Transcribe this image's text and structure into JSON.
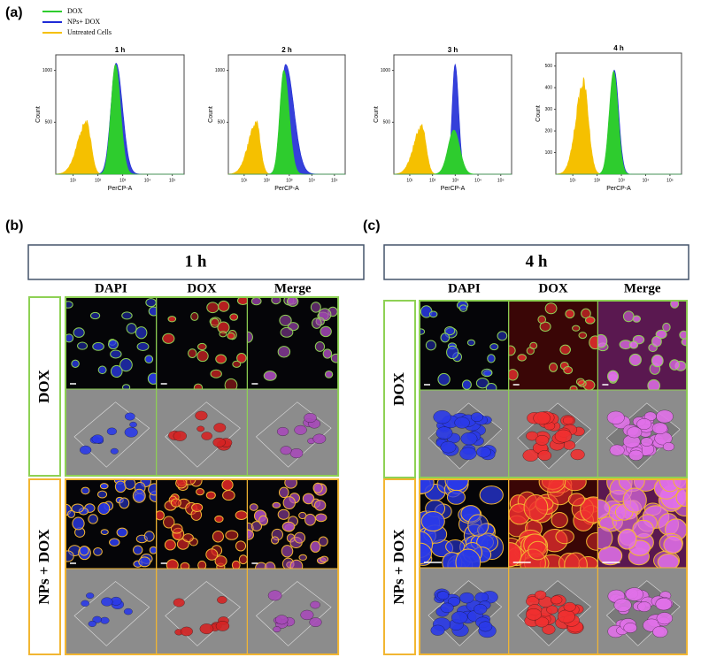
{
  "panel_a": {
    "label": "(a)",
    "legend": [
      {
        "name": "DOX",
        "color": "#2ecc2e"
      },
      {
        "name": "NPs+ DOX",
        "color": "#1f2bd6"
      },
      {
        "name": "Untreated Cells",
        "color": "#f5c000"
      }
    ],
    "histograms": [
      {
        "title": "1 h",
        "xlabel": "PerCP-A",
        "ylabel": "Count",
        "ylim": [
          0,
          1150
        ],
        "yticks": [
          500,
          1000
        ],
        "xlim": [
          2,
          300000
        ],
        "xticks": [
          {
            "value": 10,
            "label": "10¹"
          },
          {
            "value": 100,
            "label": "10²"
          },
          {
            "value": 1000,
            "label": "10³"
          },
          {
            "value": 10000,
            "label": "10⁴"
          },
          {
            "value": 100000,
            "label": "10⁵"
          }
        ]
      },
      {
        "title": "2 h",
        "xlabel": "PerCP-A",
        "ylabel": "Count",
        "ylim": [
          0,
          1150
        ],
        "yticks": [
          500,
          1000
        ],
        "xlim": [
          2,
          300000
        ],
        "xticks": [
          {
            "value": 10,
            "label": "10¹"
          },
          {
            "value": 100,
            "label": "10²"
          },
          {
            "value": 1000,
            "label": "10³"
          },
          {
            "value": 10000,
            "label": "10⁴"
          },
          {
            "value": 100000,
            "label": "10⁵"
          }
        ]
      },
      {
        "title": "3 h",
        "xlabel": "PerCP-A",
        "ylabel": "Count",
        "ylim": [
          0,
          1150
        ],
        "yticks": [
          500,
          1000
        ],
        "xlim": [
          2,
          300000
        ],
        "xticks": [
          {
            "value": 10,
            "label": "10¹"
          },
          {
            "value": 100,
            "label": "10²"
          },
          {
            "value": 1000,
            "label": "10³"
          },
          {
            "value": 10000,
            "label": "10⁴"
          },
          {
            "value": 100000,
            "label": "10⁵"
          }
        ]
      },
      {
        "title": "4 h",
        "xlabel": "PerCP-A",
        "ylabel": "Count",
        "ylim": [
          0,
          560
        ],
        "yticks": [
          100,
          200,
          300,
          400,
          500
        ],
        "xlim": [
          2,
          300000
        ],
        "xticks": [
          {
            "value": 10,
            "label": "10¹"
          },
          {
            "value": 100,
            "label": "10²"
          },
          {
            "value": 1000,
            "label": "10³"
          },
          {
            "value": 10000,
            "label": "10⁴"
          },
          {
            "value": 100000,
            "label": "10⁵"
          }
        ]
      }
    ]
  },
  "panel_b": {
    "label": "(b)",
    "time": "1 h",
    "columns": [
      "DAPI",
      "DOX",
      "Merge"
    ],
    "rows": [
      "DOX",
      "NPs + DOX"
    ]
  },
  "panel_c": {
    "label": "(c)",
    "time": "4 h",
    "columns": [
      "DAPI",
      "DOX",
      "Merge"
    ],
    "rows": [
      "DOX",
      "NPs + DOX"
    ]
  }
}
